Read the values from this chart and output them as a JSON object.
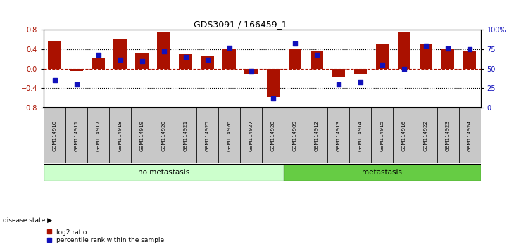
{
  "title": "GDS3091 / 166459_1",
  "samples": [
    "GSM114910",
    "GSM114911",
    "GSM114917",
    "GSM114918",
    "GSM114919",
    "GSM114920",
    "GSM114921",
    "GSM114925",
    "GSM114926",
    "GSM114927",
    "GSM114928",
    "GSM114909",
    "GSM114912",
    "GSM114913",
    "GSM114914",
    "GSM114915",
    "GSM114916",
    "GSM114922",
    "GSM114923",
    "GSM114924"
  ],
  "log2_ratio": [
    0.58,
    -0.05,
    0.22,
    0.62,
    0.32,
    0.75,
    0.3,
    0.27,
    0.4,
    -0.1,
    -0.58,
    0.4,
    0.37,
    -0.18,
    -0.1,
    0.52,
    0.76,
    0.5,
    0.42,
    0.38
  ],
  "pct_rank": [
    35,
    30,
    68,
    62,
    60,
    72,
    65,
    62,
    77,
    47,
    12,
    82,
    68,
    30,
    33,
    55,
    50,
    80,
    76,
    75
  ],
  "no_metastasis_count": 11,
  "metastasis_count": 9,
  "bar_color": "#aa1100",
  "dot_color": "#1111bb",
  "label_no_metastasis": "no metastasis",
  "label_metastasis": "metastasis",
  "label_disease_state": "disease state",
  "legend_log2": "log2 ratio",
  "legend_pct": "percentile rank within the sample",
  "ylim_left": [
    -0.8,
    0.8
  ],
  "yticks_left": [
    -0.8,
    -0.4,
    0.0,
    0.4,
    0.8
  ],
  "yticks_right_vals": [
    0,
    25,
    50,
    75,
    100
  ],
  "yticks_right_labels": [
    "0",
    "25",
    "50",
    "75",
    "100%"
  ],
  "dotted_lines": [
    -0.4,
    0.4
  ],
  "no_metastasis_color": "#ccffcc",
  "metastasis_color": "#66cc44",
  "label_bg": "#c8c8c8"
}
